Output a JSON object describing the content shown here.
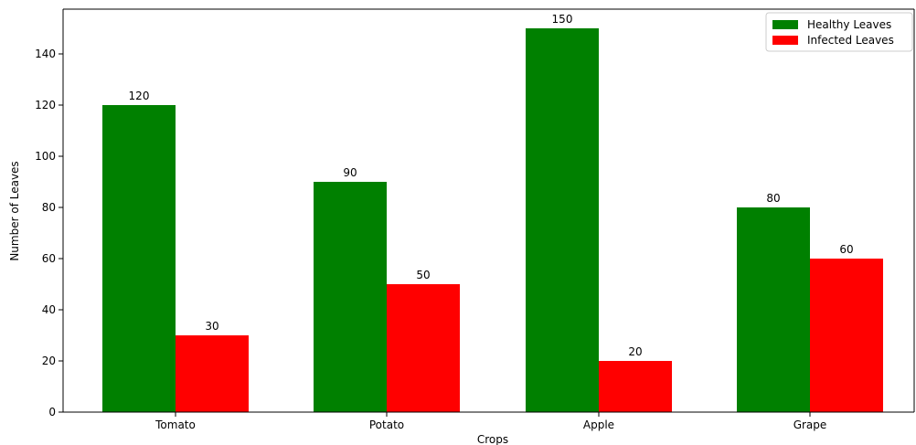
{
  "chart_data": {
    "type": "bar",
    "title": "",
    "xlabel": "Crops",
    "ylabel": "Number of Leaves",
    "categories": [
      "Tomato",
      "Potato",
      "Apple",
      "Grape"
    ],
    "series": [
      {
        "name": "Healthy Leaves",
        "values": [
          120,
          90,
          150,
          80
        ],
        "color": "#008000"
      },
      {
        "name": "Infected Leaves",
        "values": [
          30,
          50,
          20,
          60
        ],
        "color": "#ff0000"
      }
    ],
    "ylim": [
      0,
      157.5
    ],
    "yticks": [
      0,
      20,
      40,
      60,
      80,
      100,
      120,
      140
    ],
    "grid": false,
    "legend_position": "upper right",
    "value_labels": true
  }
}
